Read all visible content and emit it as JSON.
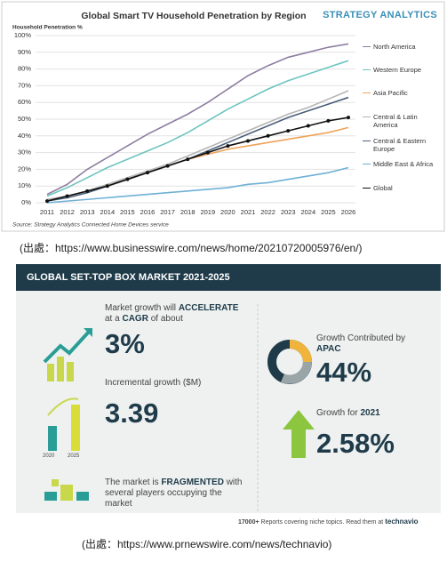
{
  "chart_data": {
    "type": "line",
    "title": "Global Smart TV Household Penetration by Region",
    "brand": "STRATEGY ANALYTICS",
    "y_label": "Household Penetration %",
    "source": "Source: Strategy Analytics Connected Home Devices service",
    "categories": [
      "2011",
      "2012",
      "2013",
      "2014",
      "2015",
      "2016",
      "2017",
      "2018",
      "2019",
      "2020",
      "2021",
      "2022",
      "2023",
      "2024",
      "2025",
      "2026"
    ],
    "ylim": [
      0,
      100
    ],
    "yticks": [
      {
        "value": 0,
        "label": "0%"
      },
      {
        "value": 10,
        "label": "10%"
      },
      {
        "value": 20,
        "label": "20%"
      },
      {
        "value": 30,
        "label": "30%"
      },
      {
        "value": 40,
        "label": "40%"
      },
      {
        "value": 50,
        "label": "50%"
      },
      {
        "value": 60,
        "label": "60%"
      },
      {
        "value": 70,
        "label": "70%"
      },
      {
        "value": 80,
        "label": "80%"
      },
      {
        "value": 90,
        "label": "90%"
      },
      {
        "value": 100,
        "label": "100%"
      }
    ],
    "grid": true,
    "series": [
      {
        "name": "North America",
        "color": "#8e7ea1",
        "values": [
          5,
          11,
          20,
          27,
          34,
          41,
          47,
          53,
          60,
          68,
          76,
          82,
          87,
          90,
          93,
          95
        ]
      },
      {
        "name": "Western Europe",
        "color": "#6cc4c0",
        "values": [
          4,
          9,
          15,
          21,
          26,
          31,
          36,
          42,
          49,
          56,
          62,
          68,
          73,
          77,
          81,
          85
        ]
      },
      {
        "name": "Asia Pacific",
        "color": "#f0a35a",
        "values": [
          1,
          4,
          7,
          10,
          14,
          18,
          22,
          26,
          29,
          32,
          34,
          36,
          38,
          40,
          42,
          45
        ]
      },
      {
        "name": "Central & Latin America",
        "color": "#b5b5b5",
        "values": [
          2,
          4,
          7,
          11,
          15,
          19,
          23,
          28,
          33,
          38,
          43,
          48,
          53,
          57,
          62,
          67
        ]
      },
      {
        "name": "Central & Eastern Europe",
        "color": "#4a5f7a",
        "values": [
          1,
          3,
          6,
          10,
          14,
          18,
          22,
          26,
          31,
          36,
          41,
          46,
          51,
          55,
          59,
          63
        ]
      },
      {
        "name": "Middle East & Africa",
        "color": "#6fb0d6",
        "values": [
          0,
          1,
          2,
          3,
          4,
          5,
          6,
          7,
          8,
          9,
          11,
          12,
          14,
          16,
          18,
          21
        ]
      },
      {
        "name": "Global",
        "color": "#111111",
        "markers": true,
        "values": [
          1,
          4,
          7,
          10,
          14,
          18,
          22,
          26,
          30,
          34,
          37,
          40,
          43,
          46,
          49,
          51
        ]
      }
    ]
  },
  "captions": [
    "(出處：https://www.businesswire.com/news/home/20210720005976/en/)",
    "(出處：https://www.prnewswire.com/news/technavio)"
  ],
  "infographic": {
    "title": "GLOBAL SET-TOP BOX MARKET 2021-2025",
    "cagr": {
      "text": [
        "Market growth will",
        "ACCELERATE",
        "at a",
        "CAGR",
        "of about"
      ],
      "value": "3%"
    },
    "incremental": {
      "text": "Incremental growth ($M)",
      "value": "3.39",
      "icon_labels": [
        "2020",
        "2025"
      ]
    },
    "fragmented": {
      "text": [
        "The market is",
        "FRAGMENTED",
        "with several players occupying the market"
      ]
    },
    "apac": {
      "text": [
        "Growth Contributed by",
        "APAC"
      ],
      "value": "44%"
    },
    "growth2021": {
      "text": [
        "Growth for",
        "2021"
      ],
      "value": "2.58%"
    },
    "footer": {
      "count": "17000+",
      "text": "Reports covering niche topics. Read them at",
      "brand": "technavio"
    }
  }
}
